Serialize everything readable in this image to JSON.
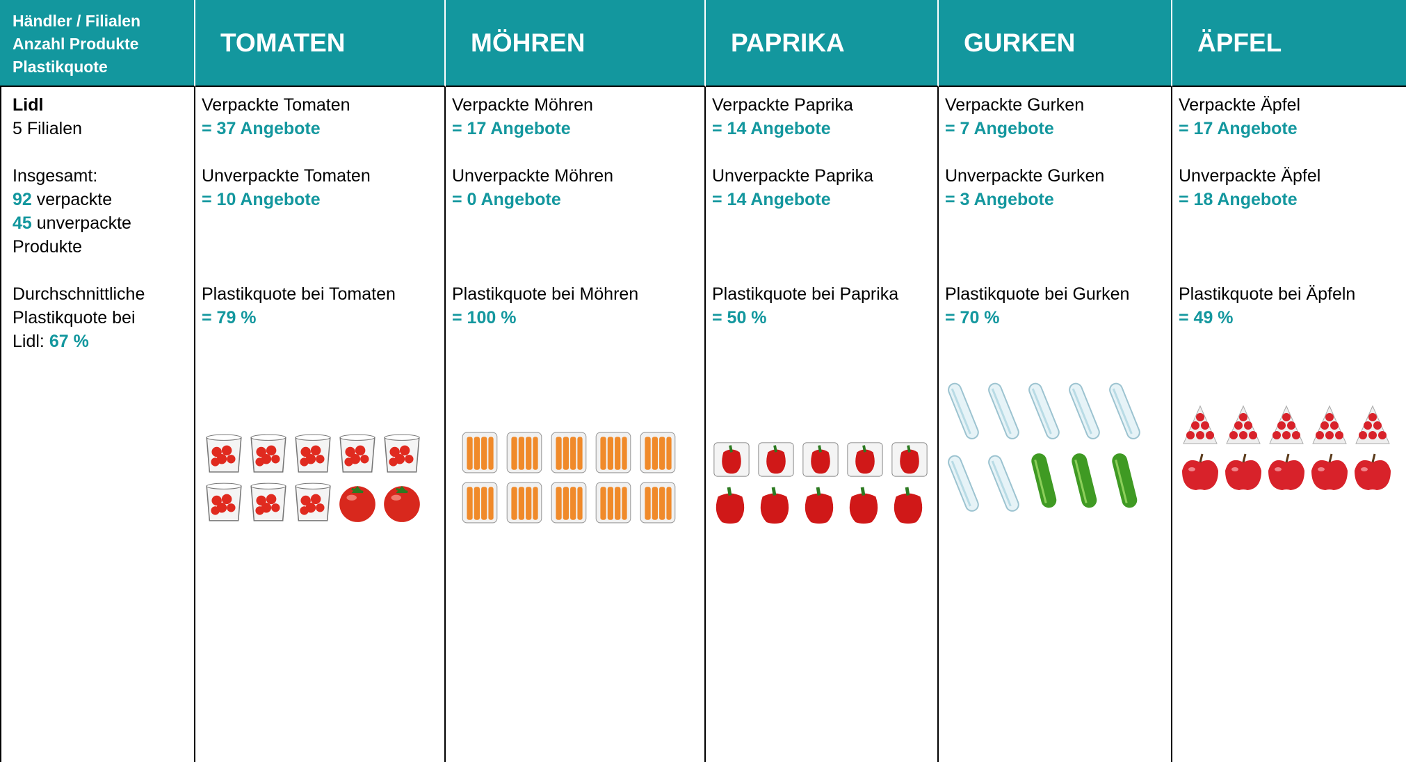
{
  "header": {
    "label_lines": [
      "Händler / Filialen",
      "Anzahl Produkte",
      "Plastikquote"
    ],
    "columns": [
      "TOMATEN",
      "MÖHREN",
      "PAPRIKA",
      "GURKEN",
      "ÄPFEL"
    ]
  },
  "retailer": {
    "name": "Lidl",
    "stores": "5 Filialen",
    "total_label": "Insgesamt:",
    "packed_count": 92,
    "packed_text": "verpackte",
    "unpacked_count": 45,
    "unpacked_text": "unverpackte",
    "products_text": "Produkte",
    "quota_label_lines": [
      "Durchschnittliche",
      "Plastikquote bei"
    ],
    "quota_prefix": "Lidl:",
    "quota_value": "67 %"
  },
  "products": [
    {
      "packed_label": "Verpackte Tomaten",
      "packed_value": "= 37 Angebote",
      "unpacked_label": "Unverpackte Tomaten",
      "unpacked_value": "= 10 Angebote",
      "quota_label": "Plastikquote bei Tomaten",
      "quota_value": "= 79 %"
    },
    {
      "packed_label": "Verpackte Möhren",
      "packed_value": "= 17 Angebote",
      "unpacked_label": "Unverpackte Möhren",
      "unpacked_value": "= 0 Angebote",
      "quota_label": "Plastikquote bei Möhren",
      "quota_value": "= 100 %"
    },
    {
      "packed_label": "Verpackte Paprika",
      "packed_value": "= 14 Angebote",
      "unpacked_label": "Unverpackte Paprika",
      "unpacked_value": "= 14 Angebote",
      "quota_label": "Plastikquote bei Paprika",
      "quota_value": "= 50 %"
    },
    {
      "packed_label": "Verpackte Gurken",
      "packed_value": "= 7 Angebote",
      "unpacked_label": "Unverpackte Gurken",
      "unpacked_value": "= 3 Angebote",
      "quota_label": "Plastikquote bei Gurken",
      "quota_value": "= 70 %"
    },
    {
      "packed_label": "Verpackte Äpfel",
      "packed_value": "= 17 Angebote",
      "unpacked_label": "Unverpackte Äpfel",
      "unpacked_value": "= 18 Angebote",
      "quota_label": "Plastikquote bei Äpfeln",
      "quota_value": "= 49 %"
    }
  ]
}
